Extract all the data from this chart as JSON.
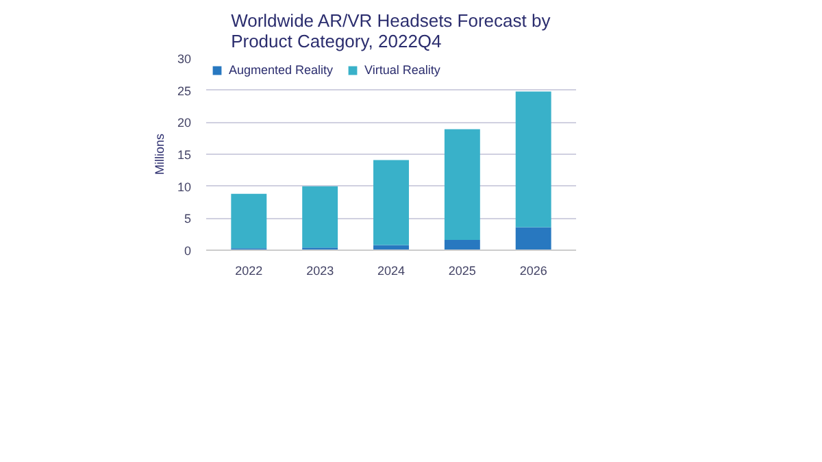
{
  "chart_data": {
    "type": "bar",
    "title": "Worldwide AR/VR Headsets Forecast by Product Category, 2022Q4",
    "ylabel": "Millions",
    "categories": [
      "2022",
      "2023",
      "2024",
      "2025",
      "2026"
    ],
    "stacked": true,
    "series": [
      {
        "name": "Augmented Reality",
        "color": "#2878c0",
        "values": [
          0.3,
          0.4,
          0.8,
          1.6,
          3.6
        ]
      },
      {
        "name": "Virtual Reality",
        "color": "#39b1c9",
        "values": [
          8.5,
          9.6,
          13.3,
          17.3,
          21.2
        ]
      }
    ],
    "ylim": [
      0,
      30
    ],
    "yticks": [
      0,
      5,
      10,
      15,
      20,
      25,
      30
    ],
    "grid": "y",
    "legend": "top left"
  }
}
